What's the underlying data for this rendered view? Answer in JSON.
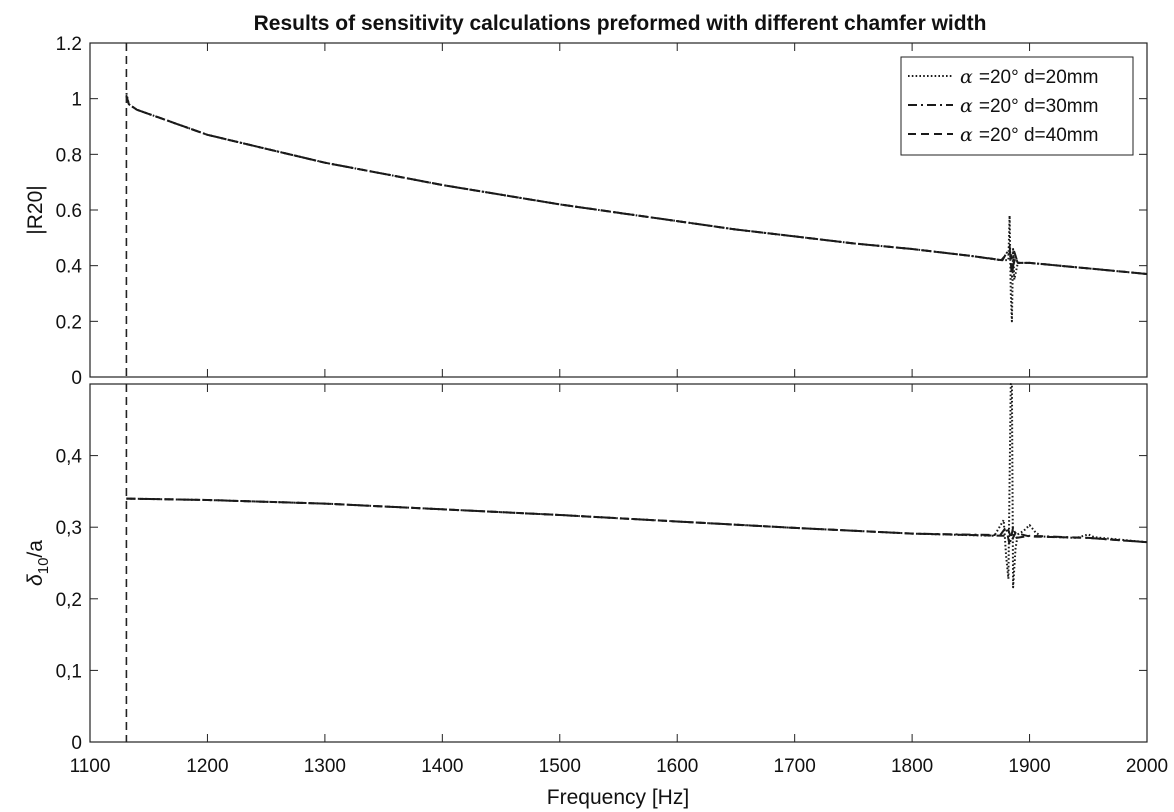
{
  "chart_data": {
    "title": "Results of sensitivity calculations preformed with different chamfer width",
    "xlabel": "Frequency [Hz]",
    "xlim": [
      1100,
      2000
    ],
    "xticks": [
      "1100",
      "1200",
      "1300",
      "1400",
      "1500",
      "1600",
      "1700",
      "1800",
      "1900",
      "2000"
    ],
    "legend": {
      "position": "top-right",
      "entries": [
        {
          "symbol": "α",
          "text": "=20° d=20mm",
          "style": "dotted"
        },
        {
          "symbol": "α",
          "text": "=20° d=30mm",
          "style": "dashdot"
        },
        {
          "symbol": "α",
          "text": "=20° d=40mm",
          "style": "dashed"
        }
      ]
    },
    "panels": [
      {
        "type": "line",
        "ylabel": "|R20|",
        "ylim": [
          0,
          1.2
        ],
        "yticks": [
          "0",
          "0.2",
          "0.4",
          "0.6",
          "0.8",
          "1",
          "1.2"
        ],
        "cutoff_line_x": 1131,
        "series": [
          {
            "name": "α =20° d=20mm",
            "style": "dotted",
            "points": [
              [
                1131,
                1.02
              ],
              [
                1133,
                0.98
              ],
              [
                1140,
                0.96
              ],
              [
                1160,
                0.93
              ],
              [
                1200,
                0.87
              ],
              [
                1250,
                0.82
              ],
              [
                1300,
                0.77
              ],
              [
                1350,
                0.73
              ],
              [
                1400,
                0.69
              ],
              [
                1450,
                0.655
              ],
              [
                1500,
                0.62
              ],
              [
                1550,
                0.59
              ],
              [
                1600,
                0.56
              ],
              [
                1650,
                0.53
              ],
              [
                1700,
                0.505
              ],
              [
                1750,
                0.48
              ],
              [
                1800,
                0.46
              ],
              [
                1850,
                0.435
              ],
              [
                1875,
                0.42
              ],
              [
                1882,
                0.42
              ],
              [
                1883,
                0.58
              ],
              [
                1884,
                0.3
              ],
              [
                1885,
                0.2
              ],
              [
                1886,
                0.46
              ],
              [
                1887,
                0.35
              ],
              [
                1890,
                0.41
              ],
              [
                1900,
                0.41
              ],
              [
                1950,
                0.39
              ],
              [
                2000,
                0.37
              ]
            ]
          },
          {
            "name": "α =20° d=30mm",
            "style": "dashdot",
            "points": [
              [
                1131,
                1.01
              ],
              [
                1133,
                0.98
              ],
              [
                1140,
                0.96
              ],
              [
                1160,
                0.93
              ],
              [
                1200,
                0.87
              ],
              [
                1250,
                0.82
              ],
              [
                1300,
                0.77
              ],
              [
                1350,
                0.73
              ],
              [
                1400,
                0.69
              ],
              [
                1450,
                0.655
              ],
              [
                1500,
                0.62
              ],
              [
                1550,
                0.59
              ],
              [
                1600,
                0.56
              ],
              [
                1650,
                0.53
              ],
              [
                1700,
                0.505
              ],
              [
                1750,
                0.48
              ],
              [
                1800,
                0.46
              ],
              [
                1850,
                0.435
              ],
              [
                1876,
                0.42
              ],
              [
                1880,
                0.44
              ],
              [
                1883,
                0.47
              ],
              [
                1885,
                0.36
              ],
              [
                1887,
                0.45
              ],
              [
                1890,
                0.41
              ],
              [
                1900,
                0.41
              ],
              [
                1950,
                0.39
              ],
              [
                2000,
                0.37
              ]
            ]
          },
          {
            "name": "α =20° d=40mm",
            "style": "dashed",
            "points": [
              [
                1131,
                1.01
              ],
              [
                1133,
                0.98
              ],
              [
                1140,
                0.96
              ],
              [
                1160,
                0.93
              ],
              [
                1200,
                0.87
              ],
              [
                1250,
                0.82
              ],
              [
                1300,
                0.77
              ],
              [
                1350,
                0.73
              ],
              [
                1400,
                0.69
              ],
              [
                1450,
                0.655
              ],
              [
                1500,
                0.62
              ],
              [
                1550,
                0.59
              ],
              [
                1600,
                0.56
              ],
              [
                1650,
                0.53
              ],
              [
                1700,
                0.505
              ],
              [
                1750,
                0.48
              ],
              [
                1800,
                0.46
              ],
              [
                1850,
                0.435
              ],
              [
                1877,
                0.42
              ],
              [
                1881,
                0.45
              ],
              [
                1884,
                0.44
              ],
              [
                1886,
                0.4
              ],
              [
                1888,
                0.43
              ],
              [
                1890,
                0.41
              ],
              [
                1900,
                0.41
              ],
              [
                1950,
                0.39
              ],
              [
                2000,
                0.37
              ]
            ]
          }
        ]
      },
      {
        "type": "line",
        "ylabel": "δ10/a",
        "ylabel_main": "δ",
        "ylabel_sub": "10",
        "ylabel_tail": "/a",
        "ylim": [
          0,
          0.5
        ],
        "yticks": [
          "0",
          "0,1",
          "0,2",
          "0,3",
          "0,4"
        ],
        "cutoff_line_x": 1131,
        "series": [
          {
            "name": "α =20° d=20mm",
            "style": "dotted",
            "points": [
              [
                1131,
                0.34
              ],
              [
                1200,
                0.338
              ],
              [
                1300,
                0.333
              ],
              [
                1400,
                0.325
              ],
              [
                1500,
                0.317
              ],
              [
                1600,
                0.308
              ],
              [
                1700,
                0.299
              ],
              [
                1800,
                0.291
              ],
              [
                1870,
                0.288
              ],
              [
                1878,
                0.31
              ],
              [
                1880,
                0.26
              ],
              [
                1882,
                0.228
              ],
              [
                1884,
                0.5
              ],
              [
                1885,
                0.5
              ],
              [
                1886,
                0.216
              ],
              [
                1888,
                0.27
              ],
              [
                1890,
                0.29
              ],
              [
                1895,
                0.295
              ],
              [
                1900,
                0.303
              ],
              [
                1905,
                0.293
              ],
              [
                1910,
                0.287
              ],
              [
                1940,
                0.285
              ],
              [
                1950,
                0.29
              ],
              [
                1955,
                0.286
              ],
              [
                2000,
                0.279
              ]
            ]
          },
          {
            "name": "α =20° d=30mm",
            "style": "dashdot",
            "points": [
              [
                1131,
                0.34
              ],
              [
                1200,
                0.338
              ],
              [
                1300,
                0.333
              ],
              [
                1400,
                0.325
              ],
              [
                1500,
                0.317
              ],
              [
                1600,
                0.308
              ],
              [
                1700,
                0.299
              ],
              [
                1800,
                0.291
              ],
              [
                1875,
                0.289
              ],
              [
                1880,
                0.3
              ],
              [
                1883,
                0.275
              ],
              [
                1886,
                0.3
              ],
              [
                1889,
                0.285
              ],
              [
                1900,
                0.288
              ],
              [
                1950,
                0.285
              ],
              [
                2000,
                0.279
              ]
            ]
          },
          {
            "name": "α =20° d=40mm",
            "style": "dashed",
            "points": [
              [
                1131,
                0.34
              ],
              [
                1200,
                0.338
              ],
              [
                1300,
                0.333
              ],
              [
                1400,
                0.325
              ],
              [
                1500,
                0.317
              ],
              [
                1600,
                0.308
              ],
              [
                1700,
                0.299
              ],
              [
                1800,
                0.291
              ],
              [
                1878,
                0.288
              ],
              [
                1882,
                0.296
              ],
              [
                1885,
                0.282
              ],
              [
                1888,
                0.292
              ],
              [
                1900,
                0.287
              ],
              [
                1950,
                0.285
              ],
              [
                2000,
                0.279
              ]
            ]
          }
        ]
      }
    ]
  }
}
